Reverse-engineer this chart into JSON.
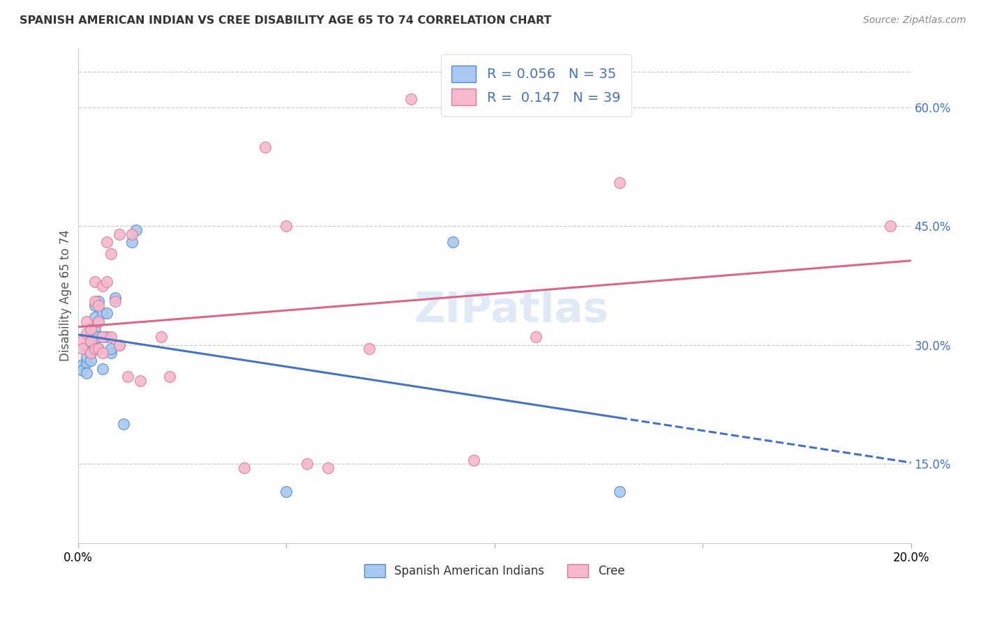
{
  "title": "SPANISH AMERICAN INDIAN VS CREE DISABILITY AGE 65 TO 74 CORRELATION CHART",
  "source": "Source: ZipAtlas.com",
  "ylabel": "Disability Age 65 to 74",
  "legend_label1": "Spanish American Indians",
  "legend_label2": "Cree",
  "R1": 0.056,
  "N1": 35,
  "R2": 0.147,
  "N2": 39,
  "color_blue": "#a8c8f0",
  "color_pink": "#f5b8cc",
  "color_blue_edge": "#5588cc",
  "color_pink_edge": "#dd7799",
  "line_blue": "#4472c4",
  "line_pink": "#dd6688",
  "watermark": "ZIPatlas",
  "xlim": [
    0.0,
    0.2
  ],
  "ylim": [
    0.05,
    0.675
  ],
  "ytick_values": [
    0.15,
    0.3,
    0.45,
    0.6
  ],
  "color_blue_text": "#4472c4",
  "blue_points_x": [
    0.001,
    0.001,
    0.002,
    0.002,
    0.002,
    0.002,
    0.002,
    0.003,
    0.003,
    0.003,
    0.003,
    0.003,
    0.004,
    0.004,
    0.004,
    0.004,
    0.005,
    0.005,
    0.005,
    0.005,
    0.006,
    0.006,
    0.006,
    0.007,
    0.007,
    0.008,
    0.008,
    0.009,
    0.01,
    0.011,
    0.013,
    0.014,
    0.05,
    0.09,
    0.13
  ],
  "blue_points_y": [
    0.275,
    0.268,
    0.278,
    0.285,
    0.295,
    0.3,
    0.265,
    0.31,
    0.29,
    0.315,
    0.305,
    0.28,
    0.32,
    0.335,
    0.35,
    0.295,
    0.355,
    0.33,
    0.295,
    0.31,
    0.34,
    0.31,
    0.27,
    0.34,
    0.31,
    0.29,
    0.295,
    0.36,
    0.3,
    0.2,
    0.43,
    0.445,
    0.115,
    0.43,
    0.115
  ],
  "pink_points_x": [
    0.001,
    0.001,
    0.002,
    0.002,
    0.003,
    0.003,
    0.003,
    0.004,
    0.004,
    0.004,
    0.005,
    0.005,
    0.005,
    0.006,
    0.006,
    0.006,
    0.007,
    0.007,
    0.008,
    0.008,
    0.009,
    0.01,
    0.01,
    0.012,
    0.013,
    0.015,
    0.02,
    0.022,
    0.04,
    0.045,
    0.05,
    0.055,
    0.06,
    0.07,
    0.08,
    0.095,
    0.11,
    0.13,
    0.195
  ],
  "pink_points_y": [
    0.305,
    0.295,
    0.315,
    0.33,
    0.29,
    0.32,
    0.305,
    0.38,
    0.355,
    0.295,
    0.35,
    0.33,
    0.295,
    0.375,
    0.31,
    0.29,
    0.43,
    0.38,
    0.415,
    0.31,
    0.355,
    0.44,
    0.3,
    0.26,
    0.44,
    0.255,
    0.31,
    0.26,
    0.145,
    0.55,
    0.45,
    0.15,
    0.145,
    0.295,
    0.61,
    0.155,
    0.31,
    0.505,
    0.45
  ]
}
